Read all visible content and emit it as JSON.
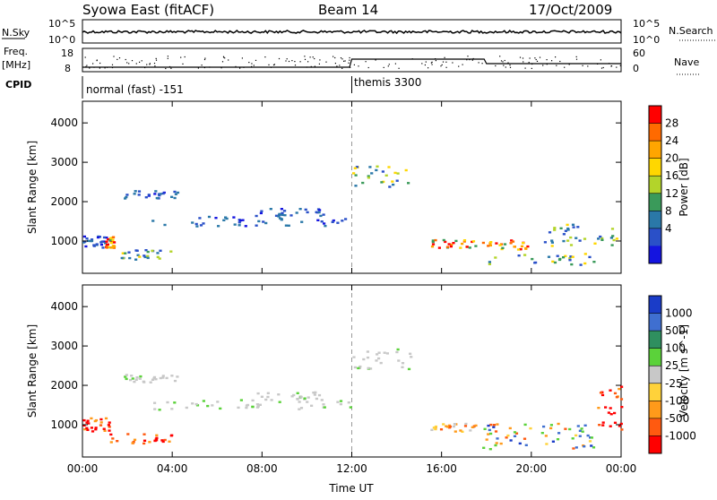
{
  "header": {
    "title": "Syowa East (fitACF)",
    "beam": "Beam 14",
    "date": "17/Oct/2009"
  },
  "strips": {
    "nsky_label": "N.Sky",
    "nsky_ticks": [
      "10^5",
      "10^0"
    ],
    "nsearch_ticks": [
      "10^5",
      "10^0"
    ],
    "nsearch_label": "N.Search",
    "freq_label_1": "Freq.",
    "freq_label_2": "[MHz]",
    "freq_ticks": [
      "18",
      "8"
    ],
    "nave_ticks": [
      "60",
      "0"
    ],
    "nave_label": "Nave",
    "cpid_label": "CPID",
    "cpid_1": "normal (fast) -151",
    "cpid_2": "themis 3300",
    "cpid_switch_hour": 12,
    "freq_step_hours": [
      12,
      18
    ]
  },
  "chart_data": [
    {
      "type": "heatmap",
      "quantity": "Power",
      "ylabel": "Slant Range [km]",
      "ylim": [
        180,
        4550
      ],
      "yticks": [
        1000,
        2000,
        3000,
        4000
      ],
      "xlim": [
        0,
        24
      ],
      "colorbar_label": "Power [dB]",
      "colorbar_ticks": [
        "28",
        "24",
        "20",
        "16",
        "12",
        "8",
        "4"
      ],
      "colorbar_colors": [
        "#ff0000",
        "#ff6a00",
        "#ffa500",
        "#ffd700",
        "#b3d42a",
        "#3a9a5a",
        "#2a78a8",
        "#2a50c8",
        "#1414e0"
      ],
      "regions": [
        {
          "t": [
            0.0,
            1.2
          ],
          "r": [
            850,
            1150
          ],
          "class": "low"
        },
        {
          "t": [
            1.0,
            1.4
          ],
          "r": [
            850,
            1150
          ],
          "class": "high"
        },
        {
          "t": [
            1.2,
            4.0
          ],
          "r": [
            550,
            800
          ],
          "class": "mid"
        },
        {
          "t": [
            1.8,
            4.2
          ],
          "r": [
            2100,
            2300
          ],
          "class": "low"
        },
        {
          "t": [
            3.0,
            12.0
          ],
          "r": [
            1400,
            1650
          ],
          "class": "low"
        },
        {
          "t": [
            7.5,
            10.8
          ],
          "r": [
            1650,
            1850
          ],
          "class": "low"
        },
        {
          "t": [
            12.0,
            14.6
          ],
          "r": [
            2400,
            2950
          ],
          "class": "mid"
        },
        {
          "t": [
            15.5,
            17.5
          ],
          "r": [
            850,
            1050
          ],
          "class": "high"
        },
        {
          "t": [
            17.8,
            19.8
          ],
          "r": [
            800,
            1050
          ],
          "class": "high"
        },
        {
          "t": [
            18.0,
            22.8
          ],
          "r": [
            400,
            700
          ],
          "class": "mid"
        },
        {
          "t": [
            20.5,
            23.9
          ],
          "r": [
            900,
            1450
          ],
          "class": "mid"
        }
      ]
    },
    {
      "type": "heatmap",
      "quantity": "Velocity",
      "ylabel": "Slant Range [km]",
      "xlabel": "Time UT",
      "ylim": [
        180,
        4550
      ],
      "yticks": [
        1000,
        2000,
        3000,
        4000
      ],
      "xlim": [
        0,
        24
      ],
      "xticks": [
        "00:00",
        "04:00",
        "08:00",
        "12:00",
        "16:00",
        "20:00",
        "00:00"
      ],
      "colorbar_label": "Velocity [m s^-1]",
      "colorbar_ticks": [
        "1000",
        "500",
        "100",
        "25",
        "-25",
        "-100",
        "-500",
        "-1000"
      ],
      "colorbar_colors": [
        "#1a3cc8",
        "#3f6fd0",
        "#2f8f5f",
        "#5bd23a",
        "#c8c8c8",
        "#ffd23a",
        "#ff9a1a",
        "#ff5a10",
        "#ff0000"
      ],
      "regions": [
        {
          "t": [
            0.0,
            1.2
          ],
          "r": [
            850,
            1200
          ],
          "class": "neg"
        },
        {
          "t": [
            1.2,
            4.0
          ],
          "r": [
            550,
            800
          ],
          "class": "neg"
        },
        {
          "t": [
            1.8,
            4.2
          ],
          "r": [
            2100,
            2300
          ],
          "class": "zero"
        },
        {
          "t": [
            3.0,
            12.0
          ],
          "r": [
            1400,
            1650
          ],
          "class": "zero"
        },
        {
          "t": [
            7.5,
            10.8
          ],
          "r": [
            1650,
            1850
          ],
          "class": "zero"
        },
        {
          "t": [
            12.0,
            14.6
          ],
          "r": [
            2400,
            2950
          ],
          "class": "zero"
        },
        {
          "t": [
            15.5,
            17.5
          ],
          "r": [
            850,
            1050
          ],
          "class": "negsmall"
        },
        {
          "t": [
            17.8,
            22.8
          ],
          "r": [
            400,
            1050
          ],
          "class": "mix"
        },
        {
          "t": [
            22.8,
            24.0
          ],
          "r": [
            900,
            2000
          ],
          "class": "neg"
        }
      ]
    }
  ]
}
